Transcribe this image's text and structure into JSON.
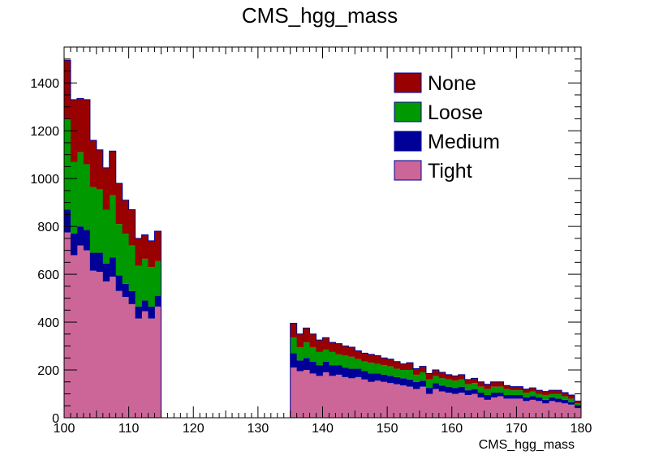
{
  "chart_data": {
    "type": "bar",
    "stacked": true,
    "title": "CMS_hgg_mass",
    "xlabel": "CMS_hgg_mass",
    "ylabel": "",
    "xlim": [
      100,
      180
    ],
    "ylim": [
      0,
      1550
    ],
    "bin_width": 1,
    "grid": false,
    "legend_position": "top-right",
    "x_ticks": [
      100,
      110,
      120,
      130,
      140,
      150,
      160,
      170,
      180
    ],
    "x_tick_labels": [
      "100",
      "110",
      "120",
      "130",
      "140",
      "150",
      "160",
      "170",
      "180"
    ],
    "y_ticks": [
      0,
      200,
      400,
      600,
      800,
      1000,
      1200,
      1400
    ],
    "y_tick_labels": [
      "0",
      "200",
      "400",
      "600",
      "800",
      "1000",
      "1200",
      "1400"
    ],
    "x_bin_edges_start": [
      100,
      101,
      102,
      103,
      104,
      105,
      106,
      107,
      108,
      109,
      110,
      111,
      112,
      113,
      114,
      115,
      116,
      117,
      118,
      119,
      120,
      121,
      122,
      123,
      124,
      125,
      126,
      127,
      128,
      129,
      130,
      131,
      132,
      133,
      134,
      135,
      136,
      137,
      138,
      139,
      140,
      141,
      142,
      143,
      144,
      145,
      146,
      147,
      148,
      149,
      150,
      151,
      152,
      153,
      154,
      155,
      156,
      157,
      158,
      159,
      160,
      161,
      162,
      163,
      164,
      165,
      166,
      167,
      168,
      169,
      170,
      171,
      172,
      173,
      174,
      175,
      176,
      177,
      178,
      179
    ],
    "series": [
      {
        "name": "Tight",
        "color": "#cc6699",
        "values": [
          775,
          680,
          720,
          700,
          615,
          610,
          570,
          590,
          530,
          505,
          475,
          415,
          445,
          415,
          465,
          0,
          0,
          0,
          0,
          0,
          0,
          0,
          0,
          0,
          0,
          0,
          0,
          0,
          0,
          0,
          0,
          0,
          0,
          0,
          0,
          210,
          195,
          200,
          185,
          175,
          190,
          175,
          180,
          170,
          165,
          170,
          160,
          150,
          155,
          150,
          145,
          140,
          135,
          130,
          120,
          130,
          100,
          120,
          110,
          105,
          100,
          105,
          95,
          100,
          85,
          75,
          85,
          90,
          80,
          80,
          80,
          70,
          75,
          70,
          60,
          70,
          65,
          60,
          55,
          40
        ]
      },
      {
        "name": "Medium",
        "color": "#000099",
        "values": [
          95,
          90,
          80,
          85,
          75,
          80,
          75,
          80,
          65,
          55,
          55,
          50,
          45,
          50,
          45,
          0,
          0,
          0,
          0,
          0,
          0,
          0,
          0,
          0,
          0,
          0,
          0,
          0,
          0,
          0,
          0,
          0,
          0,
          0,
          0,
          60,
          45,
          50,
          50,
          45,
          45,
          45,
          40,
          40,
          40,
          35,
          35,
          35,
          30,
          30,
          30,
          30,
          30,
          30,
          30,
          25,
          25,
          25,
          25,
          25,
          25,
          25,
          20,
          20,
          20,
          20,
          20,
          15,
          15,
          15,
          15,
          15,
          15,
          15,
          15,
          15,
          15,
          15,
          10,
          10
        ]
      },
      {
        "name": "Loose",
        "color": "#009900",
        "values": [
          380,
          300,
          310,
          275,
          275,
          265,
          225,
          260,
          215,
          210,
          190,
          170,
          175,
          165,
          145,
          0,
          0,
          0,
          0,
          0,
          0,
          0,
          0,
          0,
          0,
          0,
          0,
          0,
          0,
          0,
          0,
          0,
          0,
          0,
          0,
          65,
          55,
          65,
          60,
          55,
          50,
          55,
          45,
          50,
          50,
          40,
          40,
          45,
          40,
          40,
          40,
          35,
          35,
          40,
          30,
          35,
          35,
          30,
          30,
          30,
          30,
          30,
          25,
          25,
          25,
          25,
          25,
          25,
          25,
          20,
          20,
          20,
          20,
          15,
          20,
          15,
          20,
          15,
          15,
          10
        ]
      },
      {
        "name": "None",
        "color": "#990000",
        "values": [
          245,
          260,
          225,
          270,
          195,
          165,
          175,
          185,
          170,
          140,
          150,
          115,
          100,
          110,
          125,
          0,
          0,
          0,
          0,
          0,
          0,
          0,
          0,
          0,
          0,
          0,
          0,
          0,
          0,
          0,
          0,
          0,
          0,
          0,
          0,
          60,
          55,
          60,
          55,
          50,
          50,
          40,
          45,
          40,
          40,
          35,
          35,
          35,
          35,
          30,
          30,
          30,
          25,
          30,
          25,
          25,
          25,
          25,
          25,
          20,
          20,
          20,
          20,
          20,
          20,
          20,
          20,
          20,
          15,
          15,
          15,
          15,
          15,
          15,
          15,
          15,
          15,
          15,
          15,
          10
        ]
      }
    ],
    "legend_entries": [
      "None",
      "Loose",
      "Medium",
      "Tight"
    ]
  }
}
